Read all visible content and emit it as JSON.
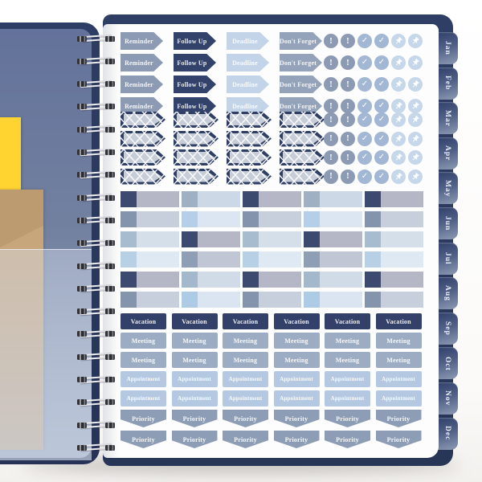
{
  "planner": {
    "tabs": [
      "Jan",
      "Feb",
      "Mar",
      "Apr",
      "May",
      "Jun",
      "Jul",
      "Aug",
      "Sep",
      "Oct",
      "Nov",
      "Dec"
    ],
    "tab_text_color": "#e9edf4",
    "cover": {
      "navy": "#2e3d63",
      "steel_blue": "#6b7a9c",
      "yellow_paper": "#ffd431",
      "kraft_envelope": "#c8a67c",
      "coil_count": 19
    }
  },
  "sticker_sheet": {
    "arrow_stickers": {
      "rows": 4,
      "items": [
        {
          "label": "Reminder",
          "color": "#8c9bb3"
        },
        {
          "label": "Follow Up",
          "color": "#33426a"
        },
        {
          "label": "Deadline",
          "color": "#c3d4e8"
        },
        {
          "label": "Don't Forget",
          "color": "#94a3ba"
        }
      ]
    },
    "icon_circles": {
      "rows": 8,
      "items": [
        {
          "icon": "exclamation-icon",
          "glyph": "!",
          "color": "#8c9bb3"
        },
        {
          "icon": "exclamation-icon",
          "glyph": "!",
          "color": "#8c9bb3"
        },
        {
          "icon": "check-icon",
          "glyph": "✓",
          "color": "#a2b7d4"
        },
        {
          "icon": "check-icon",
          "glyph": "✓",
          "color": "#a2b7d4"
        },
        {
          "icon": "pushpin-icon",
          "glyph": "pin",
          "color": "#c6d7ea"
        },
        {
          "icon": "pushpin-icon",
          "glyph": "pin",
          "color": "#c6d7ea"
        }
      ]
    },
    "flag_stickers": {
      "rows": 4,
      "cols": 4,
      "border_color": "#2f3e63",
      "fill_color": "#c6ccd8"
    },
    "washi_strips": {
      "cols": 5,
      "rows": [
        {
          "odd": {
            "square": "#3b4a6e",
            "bar": "#b5b6c6"
          },
          "even": {
            "square": "#9fb0c2",
            "bar": "#ccd8e6"
          }
        },
        {
          "odd": {
            "square": "#8494ac",
            "bar": "#c6cfdb"
          },
          "even": {
            "square": "#b5cfe8",
            "bar": "#dbe6f2"
          }
        },
        {
          "odd": {
            "square": "#a8bccf",
            "bar": "#d5dfe9"
          },
          "even": {
            "square": "#3b4a6e",
            "bar": "#b5b6c6"
          }
        },
        {
          "odd": {
            "square": "#b8d0e6",
            "bar": "#dfe9f3"
          },
          "even": {
            "square": "#8e9fb5",
            "bar": "#c1c6d4"
          }
        },
        {
          "odd": {
            "square": "#3b4a6e",
            "bar": "#b5b6c6"
          },
          "even": {
            "square": "#a4b8cc",
            "bar": "#d0dbe7"
          }
        },
        {
          "odd": {
            "square": "#8494ac",
            "bar": "#c6cfdb"
          },
          "even": {
            "square": "#aecbe6",
            "bar": "#dae5f1"
          }
        }
      ]
    },
    "label_stickers": {
      "cols": 6,
      "rows": [
        {
          "label": "Vacation",
          "color": "#33416a",
          "shape": "rect"
        },
        {
          "label": "Meeting",
          "color": "#9cacc2",
          "shape": "rect"
        },
        {
          "label": "Meeting",
          "color": "#9cacc2",
          "shape": "rect"
        },
        {
          "label": "Appointment",
          "color": "#b4c9e1",
          "shape": "rect"
        },
        {
          "label": "Appointment",
          "color": "#b4c9e1",
          "shape": "rect"
        },
        {
          "label": "Priority",
          "color": "#8d9db5",
          "shape": "banner"
        },
        {
          "label": "Priority",
          "color": "#8d9db5",
          "shape": "banner"
        }
      ]
    }
  }
}
